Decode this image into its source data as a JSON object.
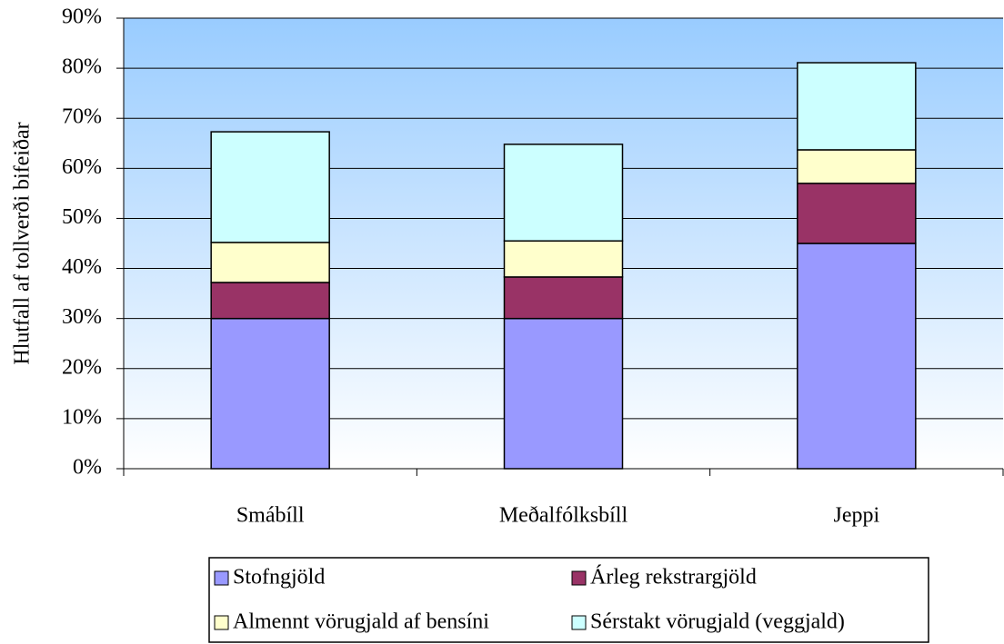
{
  "chart_data": {
    "type": "stacked_bar",
    "y_label": "Hlutfall af tollverði bifeiðar",
    "categories": [
      "Smábíll",
      "Meðalfólksbíll",
      "Jeppi"
    ],
    "series": [
      {
        "name": "Stofngjöld",
        "color": "#9999ff",
        "values": [
          30,
          30,
          45
        ]
      },
      {
        "name": "Árleg rekstrargjöld",
        "color": "#993366",
        "values": [
          7.2,
          8.3,
          12
        ]
      },
      {
        "name": "Almennt vörugjald af bensíni",
        "color": "#ffffcc",
        "values": [
          8,
          7.2,
          6.7
        ]
      },
      {
        "name": "Sérstakt vörugjald (veggjald)",
        "color": "#ccffff",
        "values": [
          22.1,
          19.3,
          17.4
        ]
      }
    ],
    "ylim": [
      0,
      90
    ],
    "yticks": [
      {
        "value": 0,
        "label": "0%"
      },
      {
        "value": 10,
        "label": "10%"
      },
      {
        "value": 20,
        "label": "20%"
      },
      {
        "value": 30,
        "label": "30%"
      },
      {
        "value": 40,
        "label": "40%"
      },
      {
        "value": 50,
        "label": "50%"
      },
      {
        "value": 60,
        "label": "60%"
      },
      {
        "value": 70,
        "label": "70%"
      },
      {
        "value": 80,
        "label": "80%"
      },
      {
        "value": 90,
        "label": "90%"
      }
    ],
    "grid": true,
    "legend": "bottom"
  }
}
